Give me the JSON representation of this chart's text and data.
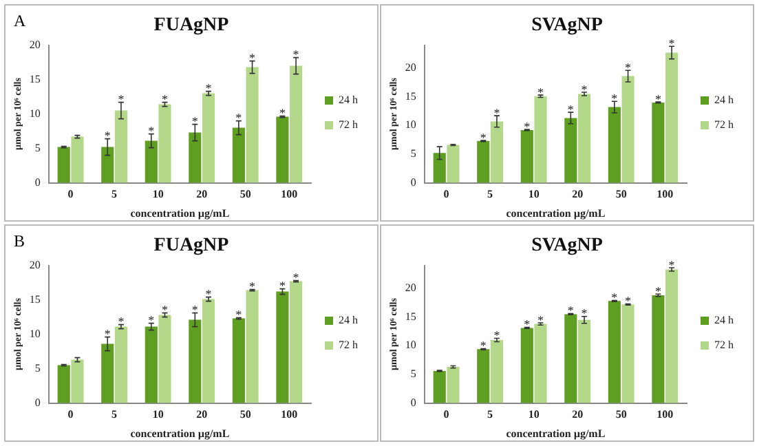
{
  "chart_data": [
    {
      "type": "bar",
      "title": "FUAgNP",
      "annotations": [
        "A"
      ],
      "xlabel": "concentration µg/mL",
      "ylabel": "µmol per 10⁶ cells",
      "categories": [
        "0",
        "5",
        "10",
        "20",
        "50",
        "100"
      ],
      "ylim": [
        0,
        20
      ],
      "yticks": [
        0,
        5,
        10,
        15,
        20
      ],
      "legend": "right",
      "series": [
        {
          "name": "24 h",
          "color": "#5e9e20",
          "values": [
            5.2,
            5.2,
            6.1,
            7.3,
            8.0,
            9.6
          ],
          "errors": [
            0.1,
            1.2,
            1.0,
            1.2,
            1.0,
            0.1
          ],
          "value_labels": [
            null,
            "*",
            "*",
            "*",
            "*",
            "*"
          ]
        },
        {
          "name": "72 h",
          "color": "#b3d88a",
          "values": [
            6.7,
            10.5,
            11.4,
            13.0,
            16.8,
            17.0
          ],
          "errors": [
            0.2,
            1.2,
            0.3,
            0.3,
            0.9,
            1.2
          ],
          "value_labels": [
            null,
            "*",
            "*",
            "*",
            "*",
            "*"
          ]
        }
      ]
    },
    {
      "type": "bar",
      "title": "SVAgNP",
      "xlabel": "concentration µg/mL",
      "ylabel": "µmol per 10⁶ cells",
      "categories": [
        "0",
        "5",
        "10",
        "20",
        "50",
        "100"
      ],
      "ylim": [
        0,
        24
      ],
      "yticks": [
        0,
        5,
        10,
        15,
        20
      ],
      "legend": "right",
      "series": [
        {
          "name": "24 h",
          "color": "#5e9e20",
          "values": [
            5.2,
            7.3,
            9.2,
            11.3,
            13.2,
            14.0
          ],
          "errors": [
            1.1,
            0.1,
            0.1,
            1.0,
            1.0,
            0.1
          ],
          "value_labels": [
            null,
            "*",
            "*",
            "*",
            "*",
            "*"
          ]
        },
        {
          "name": "72 h",
          "color": "#b3d88a",
          "values": [
            6.6,
            10.7,
            15.1,
            15.5,
            18.6,
            22.7
          ],
          "errors": [
            0.1,
            1.0,
            0.2,
            0.3,
            1.0,
            1.1
          ],
          "value_labels": [
            null,
            "*",
            "*",
            "*",
            "*",
            "*"
          ]
        }
      ]
    },
    {
      "type": "bar",
      "title": "FUAgNP",
      "annotations": [
        "B"
      ],
      "xlabel": "concentration µg/mL",
      "ylabel": "µmol per 10⁶ cells",
      "categories": [
        "0",
        "5",
        "10",
        "20",
        "50",
        "100"
      ],
      "ylim": [
        0,
        20
      ],
      "yticks": [
        0,
        5,
        10,
        15,
        20
      ],
      "legend": "right",
      "series": [
        {
          "name": "24 h",
          "color": "#5e9e20",
          "values": [
            5.5,
            8.6,
            11.1,
            12.1,
            12.3,
            16.2
          ],
          "errors": [
            0.1,
            1.0,
            0.5,
            1.0,
            0.1,
            0.4
          ],
          "value_labels": [
            null,
            "*",
            "*",
            "*",
            "*",
            "*"
          ]
        },
        {
          "name": "72 h",
          "color": "#b3d88a",
          "values": [
            6.3,
            11.1,
            12.8,
            15.1,
            16.4,
            17.7
          ],
          "errors": [
            0.3,
            0.3,
            0.3,
            0.3,
            0.1,
            0.1
          ],
          "value_labels": [
            null,
            "*",
            "*",
            "*",
            "*",
            "*"
          ]
        }
      ]
    },
    {
      "type": "bar",
      "title": "SVAgNP",
      "xlabel": "concentration µg/mL",
      "ylabel": "µmol per 10⁶ cells",
      "categories": [
        "0",
        "5",
        "10",
        "20",
        "50",
        "100"
      ],
      "ylim": [
        0,
        24
      ],
      "yticks": [
        0,
        5,
        10,
        15,
        20
      ],
      "legend": "right",
      "series": [
        {
          "name": "24 h",
          "color": "#5e9e20",
          "values": [
            5.6,
            9.4,
            13.1,
            15.5,
            17.8,
            18.8
          ],
          "errors": [
            0.1,
            0.1,
            0.1,
            0.1,
            0.1,
            0.2
          ],
          "value_labels": [
            null,
            "*",
            "*",
            "*",
            "*",
            "*"
          ]
        },
        {
          "name": "72 h",
          "color": "#b3d88a",
          "values": [
            6.3,
            11.0,
            13.8,
            14.5,
            17.2,
            23.3
          ],
          "errors": [
            0.2,
            0.3,
            0.2,
            0.6,
            0.1,
            0.3
          ],
          "value_labels": [
            null,
            "*",
            "*",
            "*",
            "*",
            "*"
          ]
        }
      ]
    }
  ]
}
